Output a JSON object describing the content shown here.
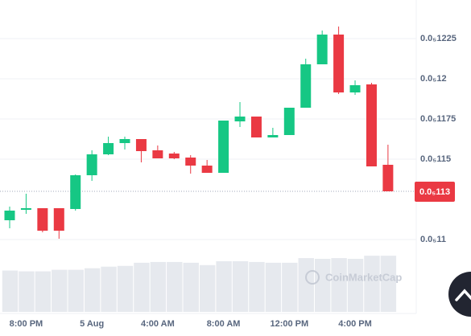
{
  "chart_data": {
    "type": "candlestick",
    "categories": [
      null,
      "8:00 PM",
      null,
      null,
      null,
      "5 Aug",
      null,
      null,
      null,
      "4:00 AM",
      null,
      null,
      null,
      "8:00 AM",
      null,
      null,
      null,
      "12:00 PM",
      null,
      null,
      null,
      "4:00 PM",
      null,
      null
    ],
    "open": [
      1.112e-06,
      1.1185e-06,
      1.1195e-06,
      1.1195e-06,
      1.119e-06,
      1.14e-06,
      1.153e-06,
      1.16e-06,
      1.1625e-06,
      1.1555e-06,
      1.1535e-06,
      1.151e-06,
      1.146e-06,
      1.1415e-06,
      1.1735e-06,
      1.1765e-06,
      1.1635e-06,
      1.165e-06,
      1.182e-06,
      1.209e-06,
      1.2275e-06,
      1.1915e-06,
      1.1965e-06,
      1.1465e-06
    ],
    "high": [
      1.1205e-06,
      1.1285e-06,
      1.1195e-06,
      1.1195e-06,
      1.1405e-06,
      1.1555e-06,
      1.164e-06,
      1.164e-06,
      1.1625e-06,
      1.1585e-06,
      1.1545e-06,
      1.1525e-06,
      1.1495e-06,
      1.174e-06,
      1.1855e-06,
      1.1765e-06,
      1.1695e-06,
      1.182e-06,
      1.2125e-06,
      1.23e-06,
      1.2325e-06,
      1.199e-06,
      1.1975e-06,
      1.159e-06
    ],
    "low": [
      1.107e-06,
      1.116e-06,
      1.1045e-06,
      1.1005e-06,
      1.118e-06,
      1.1365e-06,
      1.1525e-06,
      1.156e-06,
      1.148e-06,
      1.1505e-06,
      1.15e-06,
      1.141e-06,
      1.1415e-06,
      1.1415e-06,
      1.17e-06,
      1.1635e-06,
      1.1635e-06,
      1.165e-06,
      1.182e-06,
      1.209e-06,
      1.1905e-06,
      1.19e-06,
      1.1455e-06,
      1.13e-06
    ],
    "close": [
      1.118e-06,
      1.1195e-06,
      1.1055e-06,
      1.1055e-06,
      1.14e-06,
      1.153e-06,
      1.16e-06,
      1.1625e-06,
      1.155e-06,
      1.1505e-06,
      1.1505e-06,
      1.146e-06,
      1.1415e-06,
      1.174e-06,
      1.1765e-06,
      1.1635e-06,
      1.165e-06,
      1.182e-06,
      1.209e-06,
      1.2275e-06,
      1.1915e-06,
      1.196e-06,
      1.1455e-06,
      1.13e-06
    ],
    "up_color": "#16c784",
    "down_color": "#ea3943",
    "ylim": [
      1.054e-06,
      1.249e-06
    ],
    "yticks": [
      {
        "value": 1.1e-06,
        "label": "0.0₅11"
      },
      {
        "value": 1.15e-06,
        "label": "0.0₅115"
      },
      {
        "value": 1.175e-06,
        "label": "0.0₅1175"
      },
      {
        "value": 1.2e-06,
        "label": "0.0₅12"
      },
      {
        "value": 1.225e-06,
        "label": "0.0₅1225"
      }
    ],
    "grid": true,
    "current_price": {
      "value": 1.13e-06,
      "label": "0.0₅113"
    },
    "volume": {
      "values": [
        53,
        52,
        52,
        54,
        54,
        56,
        58,
        59,
        63,
        64,
        64,
        63,
        60,
        65,
        65,
        64,
        63,
        63,
        69,
        68,
        69,
        68,
        72,
        72
      ],
      "color": "#e6e9ee",
      "ylim": [
        0,
        400
      ]
    },
    "watermark": "CoinMarketCap"
  }
}
